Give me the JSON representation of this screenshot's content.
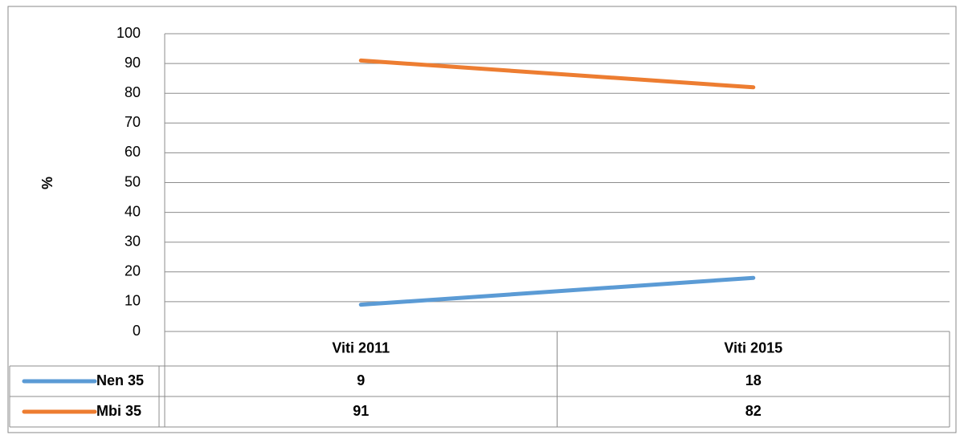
{
  "chart_data": {
    "type": "line",
    "y_label": "%",
    "categories": [
      "Viti 2011",
      "Viti 2015"
    ],
    "series": [
      {
        "name": "Nen 35",
        "color": "#5b9bd5",
        "values": [
          9,
          18
        ]
      },
      {
        "name": "Mbi 35",
        "color": "#ed7d31",
        "values": [
          91,
          82
        ]
      }
    ],
    "ylim": [
      0,
      100
    ],
    "yticks": [
      0,
      10,
      20,
      30,
      40,
      50,
      60,
      70,
      80,
      90,
      100
    ],
    "grid": true,
    "data_table": true
  }
}
